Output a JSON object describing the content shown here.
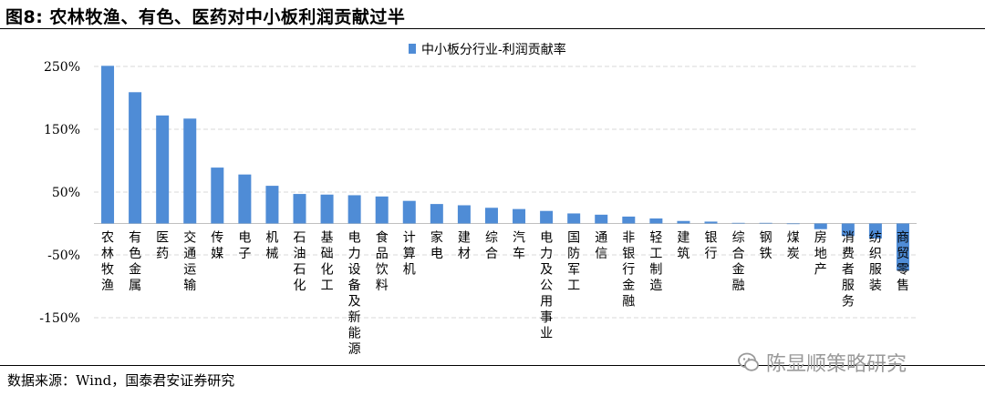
{
  "title": "图8:  农林牧渔、有色、医药对中小板利润贡献过半",
  "source": "数据来源：Wind，国泰君安证券研究",
  "watermark": {
    "text": "陈显顺策略研究",
    "icon": "wechat-icon"
  },
  "colors": {
    "bar": "#4f8cd6",
    "grid": "#d9d9d9",
    "axis": "#bfbfbf",
    "text": "#000000"
  },
  "chart_data": {
    "type": "bar",
    "legend": "中小板分行业-利润贡献率",
    "legend_position": "top-center",
    "y_ticks": [
      "250%",
      "150%",
      "50%",
      "-50%",
      "-150%"
    ],
    "ylim": [
      -150,
      250
    ],
    "grid": true,
    "categories": [
      "农林牧渔",
      "有色金属",
      "医药",
      "交通运输",
      "传媒",
      "电子",
      "机械",
      "石油石化",
      "基础化工",
      "电力设备及新能源",
      "食品饮料",
      "计算机",
      "家电",
      "建材",
      "综合",
      "汽车",
      "电力及公用事业",
      "国防军工",
      "通信",
      "非银行金融",
      "轻工制造",
      "建筑",
      "银行",
      "综合金融",
      "钢铁",
      "煤炭",
      "房地产",
      "消费者服务",
      "纺织服装",
      "商贸零售"
    ],
    "values": [
      251,
      209,
      172,
      167,
      89,
      78,
      60,
      47,
      46,
      45,
      43,
      36,
      31,
      29,
      25,
      23,
      20,
      16,
      14,
      11,
      8,
      4,
      3,
      1,
      1,
      -1,
      -9,
      -20,
      -24,
      -75
    ]
  }
}
